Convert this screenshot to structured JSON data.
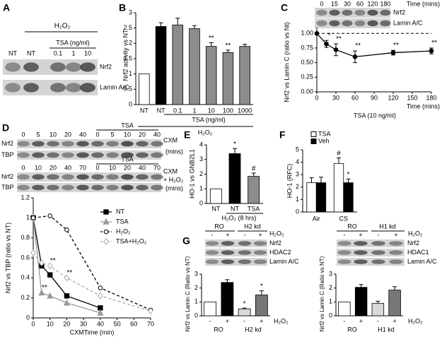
{
  "chart_data": [
    {
      "type": "blot",
      "panel_label": "A",
      "treatment": "H₂O₂",
      "lane_group": "TSA (ng/ml)",
      "lanes": [
        "NT",
        "NT",
        "0.1",
        "1",
        "10"
      ],
      "rows": [
        "Nrf2",
        "Lamin A/C"
      ]
    },
    {
      "type": "bar",
      "panel_label": "B",
      "ylabel": "Nrf2 activity vs NT",
      "categories": [
        "NT",
        "NT",
        "0.1",
        "1",
        "10",
        "100",
        "1000"
      ],
      "values": [
        1,
        2.55,
        2.6,
        2.48,
        1.9,
        1.7,
        1.9
      ],
      "errors": [
        null,
        0.12,
        0.22,
        0.1,
        0.12,
        0.08,
        0.07
      ],
      "colors": [
        "#ffffff",
        "#000000",
        "#8c8c8c",
        "#8c8c8c",
        "#8c8c8c",
        "#8c8c8c",
        "#8c8c8c"
      ],
      "ylim": [
        0,
        3
      ],
      "yticks": [
        0,
        0.5,
        1,
        1.5,
        2,
        2.5,
        3
      ],
      "annotations": [
        {
          "text": "**",
          "index": 4
        },
        {
          "text": "**",
          "index": 5
        }
      ],
      "group_label": "TSA (ng/ml)",
      "treatment": "H₂O₂"
    },
    {
      "type": "line",
      "panel_label": "C",
      "ylabel": "Nrf2 vs Lamin C (ratio vs Nt)",
      "xlabel": "Time (mins)",
      "note": "TSA (10 ng/ml)",
      "blot_lanes": [
        "0",
        "15",
        "30",
        "60",
        "120",
        "180"
      ],
      "blot_title": "Time (mins)",
      "blot_rows": [
        "Nrf2",
        "Lamin A/C"
      ],
      "x": [
        0,
        15,
        30,
        60,
        120,
        180
      ],
      "values": [
        1.0,
        0.82,
        0.72,
        0.6,
        0.67,
        0.7
      ],
      "errors": [
        null,
        0.06,
        0.1,
        0.1,
        0.04,
        0.05
      ],
      "color": "#000000",
      "xlim": [
        0,
        180
      ],
      "xticks": [
        0,
        30,
        60,
        90,
        120,
        150,
        180
      ],
      "ylim": [
        0,
        1.1
      ],
      "yticks": [
        {
          "value": 0,
          "label": "0.00"
        },
        {
          "value": 0.25,
          "label": "0.25"
        },
        {
          "value": 0.5,
          "label": "0.50"
        },
        {
          "value": 0.75,
          "label": "0.75"
        },
        {
          "value": 1,
          "label": "1.00"
        }
      ],
      "reference_line": 1,
      "annotations": [
        {
          "text": "*",
          "index": 1
        },
        {
          "text": "**",
          "index": 2
        },
        {
          "text": "**",
          "index": 3
        },
        {
          "text": "**",
          "index": 4
        },
        {
          "text": "**",
          "index": 5
        }
      ]
    },
    {
      "type": "blot",
      "panel_label": "D",
      "lane_group": "TSA",
      "lanes": [
        "0",
        "5",
        "10",
        "20",
        "40",
        "0",
        "5",
        "10",
        "20",
        "40"
      ],
      "treatment_labels": [
        "CXM",
        "(mins)"
      ],
      "rows": [
        "Nrf2",
        "TBP"
      ]
    },
    {
      "type": "blot",
      "lane_group": "TSA",
      "lanes": [
        "0",
        "10",
        "20",
        "40",
        "70",
        "0",
        "10",
        "20",
        "40",
        "70"
      ],
      "treatment_labels": [
        "CXM",
        "+ H₂O₂",
        "(mins)"
      ],
      "rows": [
        "Nrf2",
        "TBP"
      ]
    },
    {
      "type": "line",
      "ylabel": "Nrf2 vs TBP (ratio vs NT)",
      "xlabel": "CXMTime (min)",
      "xlim": [
        0,
        70
      ],
      "xticks": [
        0,
        10,
        20,
        30,
        40,
        50,
        60,
        70
      ],
      "ylim": [
        0,
        1.2
      ],
      "yticks": [
        0,
        0.2,
        0.4,
        0.6,
        0.8,
        1,
        1.2
      ],
      "series": [
        {
          "name": "NT",
          "color": "#000000",
          "marker": "square",
          "filled": true,
          "dash": false,
          "x": [
            0,
            5,
            10,
            20,
            40
          ],
          "values": [
            1.0,
            0.52,
            0.43,
            0.22,
            0.1
          ]
        },
        {
          "name": "TSA",
          "color": "#999999",
          "marker": "triangle",
          "filled": true,
          "dash": false,
          "x": [
            0,
            5,
            10,
            20,
            40
          ],
          "values": [
            1.0,
            0.25,
            0.22,
            0.15,
            0.05
          ]
        },
        {
          "name": "H₂O₂",
          "color": "#000000",
          "marker": "circle",
          "filled": false,
          "dash": true,
          "x": [
            0,
            10,
            20,
            40,
            70
          ],
          "values": [
            1.0,
            1.02,
            0.88,
            0.3,
            0.08
          ]
        },
        {
          "name": "TSA+H₂O₂",
          "color": "#aaaaaa",
          "marker": "diamond",
          "filled": false,
          "dash": true,
          "x": [
            0,
            5,
            10,
            20,
            40,
            70
          ],
          "values": [
            0.65,
            0.55,
            0.52,
            0.4,
            0.22,
            0.07
          ]
        }
      ],
      "annotations": [
        {
          "text": "**",
          "series": 1,
          "index": 1
        },
        {
          "text": "**",
          "series": 3,
          "index": 2
        },
        {
          "text": "**",
          "series": 3,
          "index": 3
        }
      ]
    },
    {
      "type": "bar",
      "panel_label": "E",
      "ylabel": "HO-1 vs GNB2L1",
      "categories": [
        "NT",
        "NT",
        "TSA"
      ],
      "values": [
        1,
        3.4,
        1.85
      ],
      "errors": [
        null,
        0.35,
        0.22
      ],
      "colors": [
        "#ffffff",
        "#000000",
        "#8c8c8c"
      ],
      "ylim": [
        0,
        4
      ],
      "yticks": [
        0,
        1,
        2,
        3,
        4
      ],
      "annotations": [
        {
          "text": "*",
          "index": 1
        },
        {
          "text": "#",
          "index": 2
        }
      ],
      "treatment": "H₂O₂ (8 hrs)"
    },
    {
      "type": "bar",
      "panel_label": "F",
      "ylabel": "HO-1 (RFC)",
      "categories": [
        "Air",
        "CS"
      ],
      "series": [
        {
          "name": "TSA",
          "color": "#ffffff",
          "values": [
            2.35,
            3.9
          ],
          "errors": [
            0.4,
            0.45
          ]
        },
        {
          "name": "Veh",
          "color": "#000000",
          "values": [
            2.35,
            2.35
          ],
          "errors": [
            0.45,
            0.3
          ]
        }
      ],
      "ylim": [
        0,
        5
      ],
      "yticks": [
        0,
        1,
        2,
        3,
        4,
        5
      ],
      "annotations": [
        {
          "text": "#",
          "series": 0,
          "index": 1
        },
        {
          "text": "*",
          "series": 1,
          "index": 1
        }
      ]
    },
    {
      "type": "blot",
      "panel_label": "G",
      "groups": [
        "RO",
        "H2 kd"
      ],
      "treatment": "H₂O₂",
      "lanes": [
        "-",
        "+",
        "-",
        "+"
      ],
      "rows": [
        "Nrf2",
        "HDAC2",
        "Lamin A/C"
      ]
    },
    {
      "type": "bar",
      "ylabel": "Nrf2 vs Lamin C (Ratio vs NT)",
      "categories": [
        "-",
        "+",
        "-",
        "+"
      ],
      "values": [
        1,
        2.4,
        0.5,
        1.5
      ],
      "errors": [
        null,
        0.2,
        0.05,
        0.3
      ],
      "colors": [
        "#ffffff",
        "#000000",
        "#d9d9d9",
        "#777777"
      ],
      "ylim": [
        0,
        3
      ],
      "yticks": [
        0,
        1,
        2,
        3
      ],
      "annotations": [
        {
          "text": "*",
          "index": 2
        },
        {
          "text": "*",
          "index": 3
        }
      ],
      "groups": [
        "RO",
        "H2 kd"
      ],
      "treatment": "H₂O₂"
    },
    {
      "type": "blot",
      "groups": [
        "RO",
        "H1 kd"
      ],
      "treatment": "H₂O₂",
      "lanes": [
        "-",
        "+",
        "-",
        "+"
      ],
      "rows": [
        "Nrf2",
        "HDAC1",
        "Lamin A/C"
      ]
    },
    {
      "type": "bar",
      "ylabel": "Nrf2 vs Lamin C (Ratio vs NT)",
      "categories": [
        "-",
        "+",
        "-",
        "+"
      ],
      "values": [
        1,
        2.05,
        0.9,
        1.85
      ],
      "errors": [
        null,
        0.2,
        0.15,
        0.25
      ],
      "colors": [
        "#ffffff",
        "#000000",
        "#d9d9d9",
        "#777777"
      ],
      "ylim": [
        0,
        3
      ],
      "yticks": [
        0,
        1,
        2,
        3
      ],
      "groups": [
        "RO",
        "H1 kd"
      ],
      "treatment": "H₂O₂"
    }
  ]
}
